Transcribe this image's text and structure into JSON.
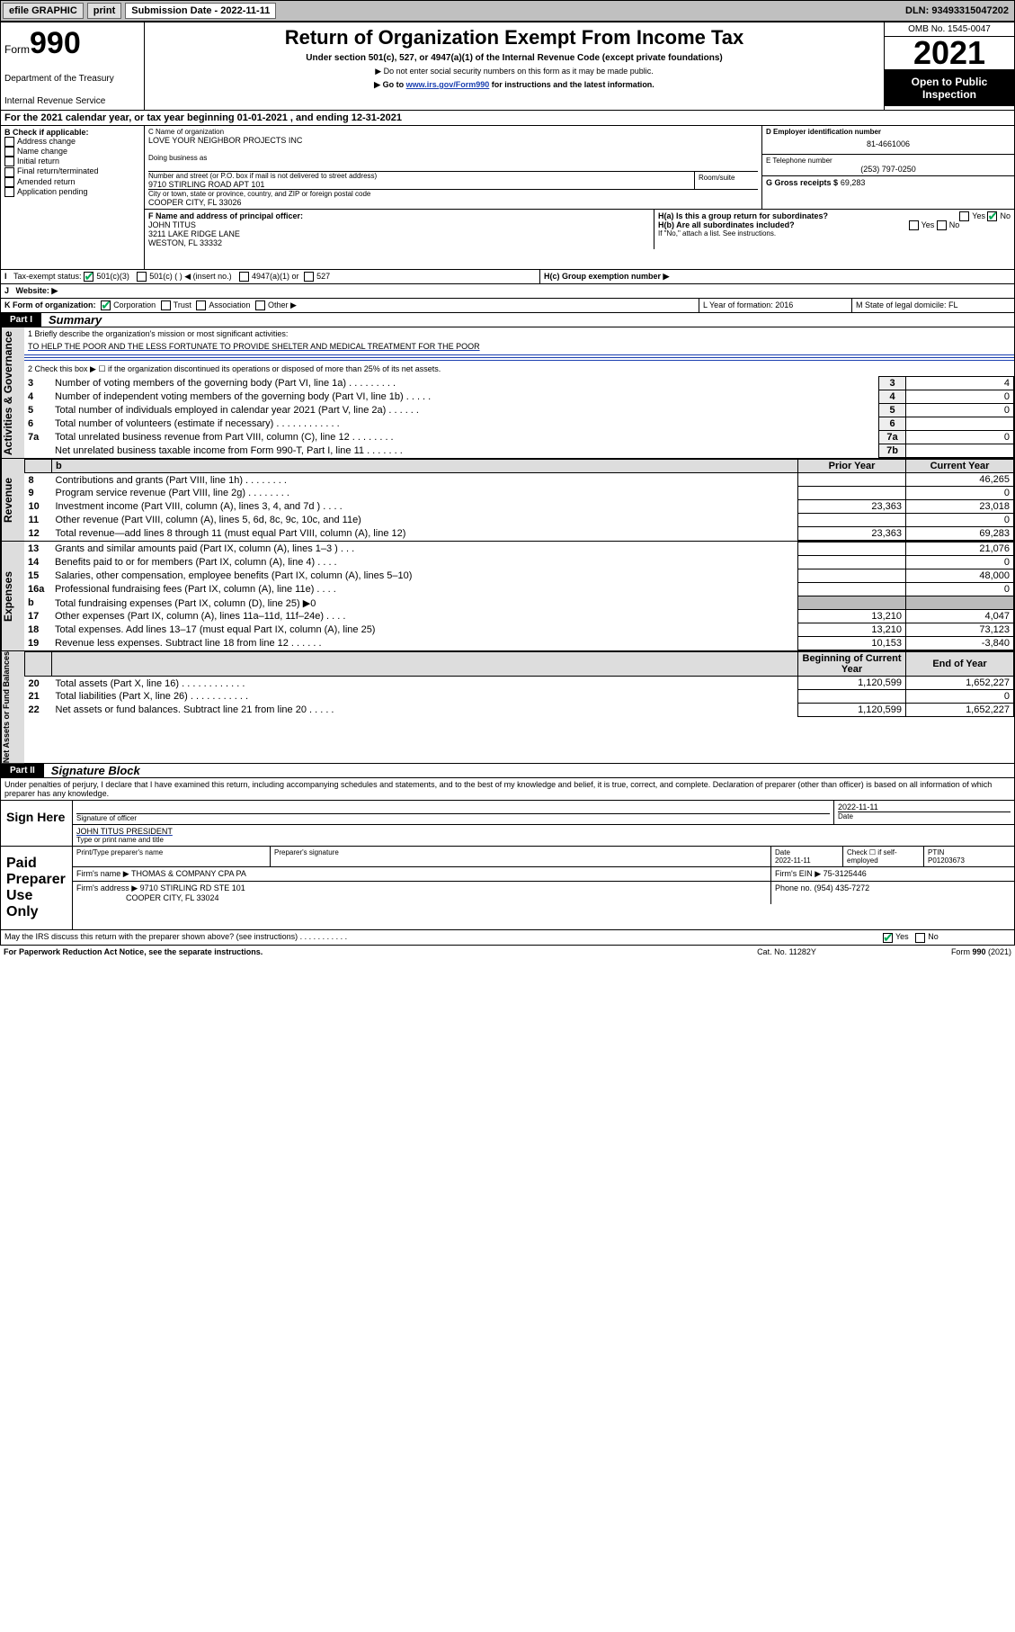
{
  "topbar": {
    "efile_label": "efile GRAPHIC",
    "print_btn": "print",
    "submission_label": "Submission Date - 2022-11-11",
    "dln": "DLN: 93493315047202"
  },
  "header": {
    "form_word": "Form",
    "form_number": "990",
    "title": "Return of Organization Exempt From Income Tax",
    "subtitle": "Under section 501(c), 527, or 4947(a)(1) of the Internal Revenue Code (except private foundations)",
    "note1": "▶ Do not enter social security numbers on this form as it may be made public.",
    "note2_pre": "▶ Go to ",
    "note2_link": "www.irs.gov/Form990",
    "note2_post": " for instructions and the latest information.",
    "dept": "Department of the Treasury",
    "irs": "Internal Revenue Service",
    "omb": "OMB No. 1545-0047",
    "year": "2021",
    "open": "Open to Public Inspection"
  },
  "lineA": "For the 2021 calendar year, or tax year beginning 01-01-2021  , and ending 12-31-2021",
  "boxB": {
    "label": "B Check if applicable:",
    "opts": [
      "Address change",
      "Name change",
      "Initial return",
      "Final return/terminated",
      "Amended return",
      "Application pending"
    ]
  },
  "boxC": {
    "name_lbl": "C Name of organization",
    "name": "LOVE YOUR NEIGHBOR PROJECTS INC",
    "dba_lbl": "Doing business as",
    "addr_lbl": "Number and street (or P.O. box if mail is not delivered to street address)",
    "room_lbl": "Room/suite",
    "addr": "9710 STIRLING ROAD APT 101",
    "city_lbl": "City or town, state or province, country, and ZIP or foreign postal code",
    "city": "COOPER CITY, FL  33026"
  },
  "boxD": {
    "lbl": "D Employer identification number",
    "val": "81-4661006"
  },
  "boxE": {
    "lbl": "E Telephone number",
    "val": "(253) 797-0250"
  },
  "boxG": {
    "lbl": "G Gross receipts $",
    "val": "69,283"
  },
  "boxF": {
    "lbl": "F Name and address of principal officer:",
    "name": "JOHN TITUS",
    "addr1": "3211 LAKE RIDGE LANE",
    "addr2": "WESTON, FL  33332"
  },
  "boxH": {
    "a": "H(a)  Is this a group return for subordinates?",
    "b": "H(b)  Are all subordinates included?",
    "b_note": "If \"No,\" attach a list. See instructions.",
    "c": "H(c)  Group exemption number ▶",
    "yes": "Yes",
    "no": "No"
  },
  "boxI": {
    "lbl": "Tax-exempt status:",
    "o1": "501(c)(3)",
    "o2": "501(c) (  ) ◀ (insert no.)",
    "o3": "4947(a)(1) or",
    "o4": "527"
  },
  "boxJ": {
    "lbl": "Website: ▶"
  },
  "boxK": {
    "lbl": "K Form of organization:",
    "o1": "Corporation",
    "o2": "Trust",
    "o3": "Association",
    "o4": "Other ▶"
  },
  "boxL": {
    "lbl": "L Year of formation: 2016"
  },
  "boxM": {
    "lbl": "M State of legal domicile: FL"
  },
  "part1": {
    "label": "Part I",
    "title": "Summary",
    "q1_lbl": "1  Briefly describe the organization's mission or most significant activities:",
    "q1_val": "TO HELP THE POOR AND THE LESS FORTUNATE TO PROVIDE SHELTER AND MEDICAL TREATMENT FOR THE POOR",
    "q2": "2   Check this box ▶ ☐  if the organization discontinued its operations or disposed of more than 25% of its net assets.",
    "rows_idx": [
      {
        "n": "3",
        "d": "Number of voting members of the governing body (Part VI, line 1a)  .   .   .   .   .   .   .   .   .",
        "i": "3",
        "v": "4"
      },
      {
        "n": "4",
        "d": "Number of independent voting members of the governing body (Part VI, line 1b)  .   .   .   .   .",
        "i": "4",
        "v": "0"
      },
      {
        "n": "5",
        "d": "Total number of individuals employed in calendar year 2021 (Part V, line 2a)  .   .   .   .   .   .",
        "i": "5",
        "v": "0"
      },
      {
        "n": "6",
        "d": "Total number of volunteers (estimate if necessary)  .   .   .   .   .   .   .   .   .   .   .   .",
        "i": "6",
        "v": ""
      },
      {
        "n": "7a",
        "d": "Total unrelated business revenue from Part VIII, column (C), line 12  .   .   .   .   .   .   .   .",
        "i": "7a",
        "v": "0"
      },
      {
        "n": "",
        "d": "Net unrelated business taxable income from Form 990-T, Part I, line 11  .   .   .   .   .   .   .",
        "i": "7b",
        "v": ""
      }
    ],
    "col_prior": "Prior Year",
    "col_curr": "Current Year",
    "rev_label": "Revenue",
    "exp_label": "Expenses",
    "nab_label": "Net Assets or Fund Balances",
    "act_label": "Activities & Governance",
    "rows_rev": [
      {
        "n": "8",
        "d": "Contributions and grants (Part VIII, line 1h)  .   .   .   .   .   .   .   .",
        "p": "",
        "c": "46,265"
      },
      {
        "n": "9",
        "d": "Program service revenue (Part VIII, line 2g)  .   .   .   .   .   .   .   .",
        "p": "",
        "c": "0"
      },
      {
        "n": "10",
        "d": "Investment income (Part VIII, column (A), lines 3, 4, and 7d )  .   .   .   .",
        "p": "23,363",
        "c": "23,018"
      },
      {
        "n": "11",
        "d": "Other revenue (Part VIII, column (A), lines 5, 6d, 8c, 9c, 10c, and 11e)",
        "p": "",
        "c": "0"
      },
      {
        "n": "12",
        "d": "Total revenue—add lines 8 through 11 (must equal Part VIII, column (A), line 12)",
        "p": "23,363",
        "c": "69,283"
      }
    ],
    "rows_exp": [
      {
        "n": "13",
        "d": "Grants and similar amounts paid (Part IX, column (A), lines 1–3 )  .   .   .",
        "p": "",
        "c": "21,076"
      },
      {
        "n": "14",
        "d": "Benefits paid to or for members (Part IX, column (A), line 4)  .   .   .   .",
        "p": "",
        "c": "0"
      },
      {
        "n": "15",
        "d": "Salaries, other compensation, employee benefits (Part IX, column (A), lines 5–10)",
        "p": "",
        "c": "48,000"
      },
      {
        "n": "16a",
        "d": "Professional fundraising fees (Part IX, column (A), line 11e)  .   .   .   .",
        "p": "",
        "c": "0"
      },
      {
        "n": "b",
        "d": "Total fundraising expenses (Part IX, column (D), line 25) ▶0",
        "p": "__GRAY__",
        "c": "__GRAY__"
      },
      {
        "n": "17",
        "d": "Other expenses (Part IX, column (A), lines 11a–11d, 11f–24e)  .   .   .   .",
        "p": "13,210",
        "c": "4,047"
      },
      {
        "n": "18",
        "d": "Total expenses. Add lines 13–17 (must equal Part IX, column (A), line 25)",
        "p": "13,210",
        "c": "73,123"
      },
      {
        "n": "19",
        "d": "Revenue less expenses. Subtract line 18 from line 12  .   .   .   .   .   .",
        "p": "10,153",
        "c": "-3,840"
      }
    ],
    "col_begin": "Beginning of Current Year",
    "col_end": "End of Year",
    "rows_nab": [
      {
        "n": "20",
        "d": "Total assets (Part X, line 16)  .   .   .   .   .   .   .   .   .   .   .   .",
        "p": "1,120,599",
        "c": "1,652,227"
      },
      {
        "n": "21",
        "d": "Total liabilities (Part X, line 26)  .   .   .   .   .   .   .   .   .   .   .",
        "p": "",
        "c": "0"
      },
      {
        "n": "22",
        "d": "Net assets or fund balances. Subtract line 21 from line 20  .   .   .   .   .",
        "p": "1,120,599",
        "c": "1,652,227"
      }
    ]
  },
  "part2": {
    "label": "Part II",
    "title": "Signature Block",
    "decl": "Under penalties of perjury, I declare that I have examined this return, including accompanying schedules and statements, and to the best of my knowledge and belief, it is true, correct, and complete. Declaration of preparer (other than officer) is based on all information of which preparer has any knowledge."
  },
  "sign": {
    "here": "Sign Here",
    "sig_officer": "Signature of officer",
    "date_lbl": "Date",
    "date": "2022-11-11",
    "typed": "JOHN TITUS PRESIDENT",
    "typed_lbl": "Type or print name and title"
  },
  "paid": {
    "title": "Paid Preparer Use Only",
    "col1": "Print/Type preparer's name",
    "col2": "Preparer's signature",
    "col3": "Date",
    "col3v": "2022-11-11",
    "col4": "Check ☐ if self-employed",
    "col5": "PTIN",
    "col5v": "P01203673",
    "firm_name_lbl": "Firm's name   ▶",
    "firm_name": "THOMAS & COMPANY CPA PA",
    "firm_ein_lbl": "Firm's EIN ▶",
    "firm_ein": "75-3125446",
    "firm_addr_lbl": "Firm's address ▶",
    "firm_addr1": "9710 STIRLING RD STE 101",
    "firm_addr2": "COOPER CITY, FL  33024",
    "phone_lbl": "Phone no.",
    "phone": "(954) 435-7272"
  },
  "footer": {
    "q": "May the IRS discuss this return with the preparer shown above? (see instructions)  .   .   .   .   .   .   .   .   .   .   .",
    "yes": "Yes",
    "no": "No",
    "pra": "For Paperwork Reduction Act Notice, see the separate instructions.",
    "cat": "Cat. No. 11282Y",
    "form": "Form 990 (2021)"
  },
  "b_blank": "b"
}
